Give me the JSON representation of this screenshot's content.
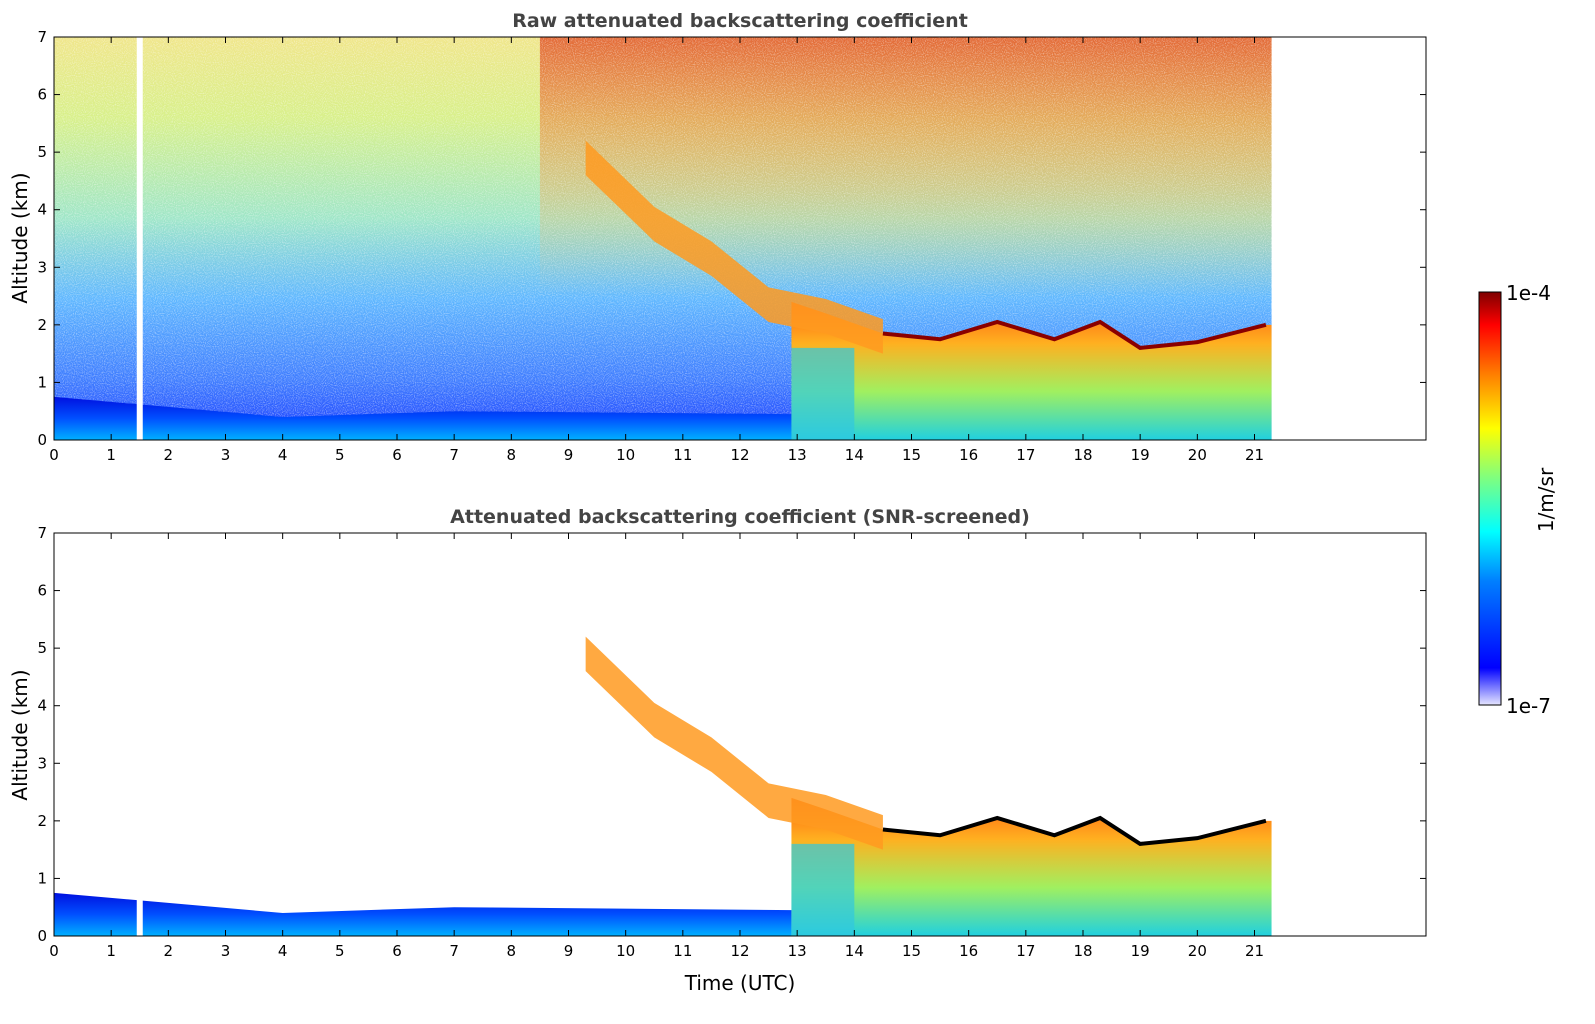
{
  "chart_data": [
    {
      "type": "heatmap",
      "title": "Raw attenuated backscattering coefficient",
      "xlabel": "",
      "ylabel": "Altitude (km)",
      "xlim": [
        0,
        24
      ],
      "ylim": [
        0,
        7
      ],
      "xticks": [
        0,
        1,
        2,
        3,
        4,
        5,
        6,
        7,
        8,
        9,
        10,
        11,
        12,
        13,
        14,
        15,
        16,
        17,
        18,
        19,
        20,
        21
      ],
      "yticks": [
        0,
        1,
        2,
        3,
        4,
        5,
        6,
        7
      ],
      "data_end_time": 21.3,
      "gap_time": 1.5,
      "layer_top_km": [
        {
          "x": 0,
          "y": 0.75
        },
        {
          "x": 4,
          "y": 0.4
        },
        {
          "x": 7,
          "y": 0.5
        },
        {
          "x": 12.9,
          "y": 0.45
        }
      ],
      "descending_layer": [
        {
          "x": 9.3,
          "y": 4.95
        },
        {
          "x": 10.5,
          "y": 3.8
        },
        {
          "x": 11.5,
          "y": 3.2
        },
        {
          "x": 12.5,
          "y": 2.4
        },
        {
          "x": 13.5,
          "y": 2.2
        },
        {
          "x": 14.5,
          "y": 1.85
        },
        {
          "x": 15.5,
          "y": 1.75
        },
        {
          "x": 16.5,
          "y": 2.05
        },
        {
          "x": 17.5,
          "y": 1.75
        },
        {
          "x": 18.3,
          "y": 2.05
        },
        {
          "x": 19,
          "y": 1.6
        },
        {
          "x": 20,
          "y": 1.7
        },
        {
          "x": 21.2,
          "y": 2.0
        }
      ],
      "colorscale": "jet"
    },
    {
      "type": "heatmap",
      "title": "Attenuated backscattering coefficient (SNR-screened)",
      "xlabel": "Time (UTC)",
      "ylabel": "Altitude (km)",
      "xlim": [
        0,
        24
      ],
      "ylim": [
        0,
        7
      ],
      "xticks": [
        0,
        1,
        2,
        3,
        4,
        5,
        6,
        7,
        8,
        9,
        10,
        11,
        12,
        13,
        14,
        15,
        16,
        17,
        18,
        19,
        20,
        21
      ],
      "yticks": [
        0,
        1,
        2,
        3,
        4,
        5,
        6,
        7
      ],
      "data_end_time": 21.3,
      "gap_time": 1.5,
      "colorscale": "jet"
    }
  ],
  "colorbar": {
    "label": "1/m/sr",
    "max_label": "1e-4",
    "min_label": "1e-7",
    "colors": [
      "#00007f",
      "#0000ff",
      "#007fff",
      "#00ffff",
      "#7fff7f",
      "#ffff00",
      "#ff7f00",
      "#ff0000",
      "#7f0000"
    ]
  }
}
